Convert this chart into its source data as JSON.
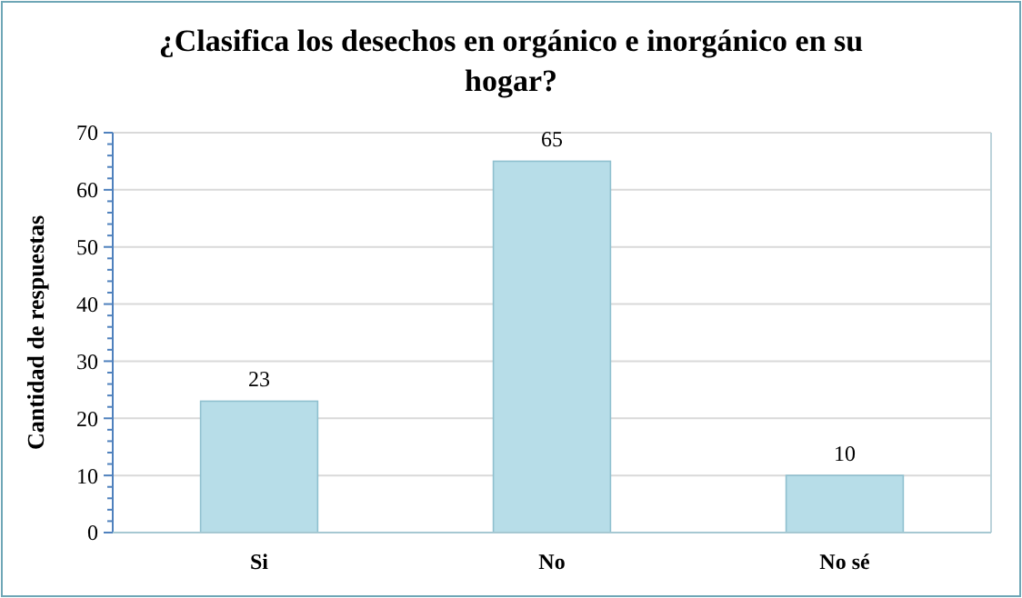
{
  "chart_data": {
    "type": "bar",
    "title": "¿Clasifica los desechos en orgánico e inorgánico en su hogar?",
    "ylabel": "Cantidad de respuestas",
    "categories": [
      "Si",
      "No",
      "No sé"
    ],
    "series": [
      {
        "color": "#b7dde8",
        "values": [
          23,
          65,
          10
        ]
      }
    ],
    "ylim": [
      0,
      70
    ],
    "yticks": [
      0,
      10,
      20,
      30,
      40,
      50,
      60,
      70
    ],
    "grid": "y",
    "data_labels": true
  }
}
